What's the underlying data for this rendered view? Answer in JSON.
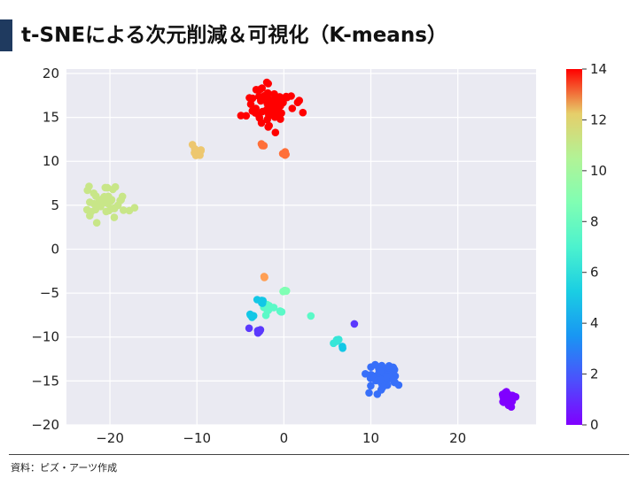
{
  "page": {
    "title": "t-SNEによる次元削減＆可視化（K-means）",
    "source": "資料：ピズ・アーツ作成"
  },
  "chart_data": {
    "type": "scatter",
    "title": "",
    "xlabel": "",
    "ylabel": "",
    "xlim": [
      -25,
      29
    ],
    "ylim": [
      -20,
      20.5
    ],
    "xticks": [
      -20,
      -10,
      0,
      10,
      20
    ],
    "yticks": [
      -20,
      -15,
      -10,
      -5,
      0,
      5,
      10,
      15,
      20
    ],
    "xtick_labels": [
      "−20",
      "−10",
      "0",
      "10",
      "20"
    ],
    "ytick_labels": [
      "−20",
      "−15",
      "−10",
      "−5",
      "0",
      "5",
      "10",
      "15",
      "20"
    ],
    "grid": true,
    "colorbar": {
      "range": [
        0,
        14
      ],
      "ticks": [
        0,
        2,
        4,
        6,
        8,
        10,
        12,
        14
      ],
      "colormap": "rainbow"
    },
    "clusters": [
      {
        "label": 14,
        "cx": -1.5,
        "cy": 16.3,
        "sx": 1.3,
        "sy": 1.2,
        "n": 75
      },
      {
        "label": 12,
        "cx": -2.6,
        "cy": 11.9,
        "sx": 0.15,
        "sy": 0.2,
        "n": 3
      },
      {
        "label": 12,
        "cx": 0.0,
        "cy": 11.0,
        "sx": 0.3,
        "sy": 0.2,
        "n": 4
      },
      {
        "label": 10,
        "cx": -10.0,
        "cy": 11.4,
        "sx": 0.4,
        "sy": 0.4,
        "n": 10
      },
      {
        "label": 9,
        "cx": -20.2,
        "cy": 5.5,
        "sx": 1.1,
        "sy": 0.9,
        "n": 48
      },
      {
        "label": 11,
        "cx": -2.2,
        "cy": -3.2,
        "sx": 0.1,
        "sy": 0.15,
        "n": 3
      },
      {
        "label": 7,
        "cx": 0.2,
        "cy": -4.8,
        "sx": 0.2,
        "sy": 0.15,
        "n": 5
      },
      {
        "label": 6,
        "cx": -1.8,
        "cy": -6.6,
        "sx": 0.45,
        "sy": 0.3,
        "n": 12
      },
      {
        "label": 6,
        "cx": -0.5,
        "cy": -7.0,
        "sx": 0.2,
        "sy": 0.1,
        "n": 3
      },
      {
        "label": 6,
        "cx": 3.1,
        "cy": -7.6,
        "sx": 0.05,
        "sy": 0.05,
        "n": 1
      },
      {
        "label": 4,
        "cx": -2.8,
        "cy": -5.9,
        "sx": 0.2,
        "sy": 0.2,
        "n": 5
      },
      {
        "label": 4,
        "cx": -3.7,
        "cy": -7.6,
        "sx": 0.2,
        "sy": 0.15,
        "n": 4
      },
      {
        "label": 5,
        "cx": 6.1,
        "cy": -10.4,
        "sx": 0.2,
        "sy": 0.2,
        "n": 4
      },
      {
        "label": 4,
        "cx": 6.7,
        "cy": -11.2,
        "sx": 0.1,
        "sy": 0.1,
        "n": 2
      },
      {
        "label": 1,
        "cx": -2.9,
        "cy": -9.6,
        "sx": 0.2,
        "sy": 0.25,
        "n": 6
      },
      {
        "label": 1,
        "cx": -4.0,
        "cy": -9.0,
        "sx": 0.05,
        "sy": 0.05,
        "n": 1
      },
      {
        "label": 1,
        "cx": 8.1,
        "cy": -8.5,
        "sx": 0.05,
        "sy": 0.05,
        "n": 1
      },
      {
        "label": 2,
        "cx": 11.5,
        "cy": -14.5,
        "sx": 0.9,
        "sy": 0.65,
        "n": 65
      },
      {
        "label": 0,
        "cx": 25.7,
        "cy": -17.0,
        "sx": 0.35,
        "sy": 0.45,
        "n": 35
      }
    ]
  }
}
